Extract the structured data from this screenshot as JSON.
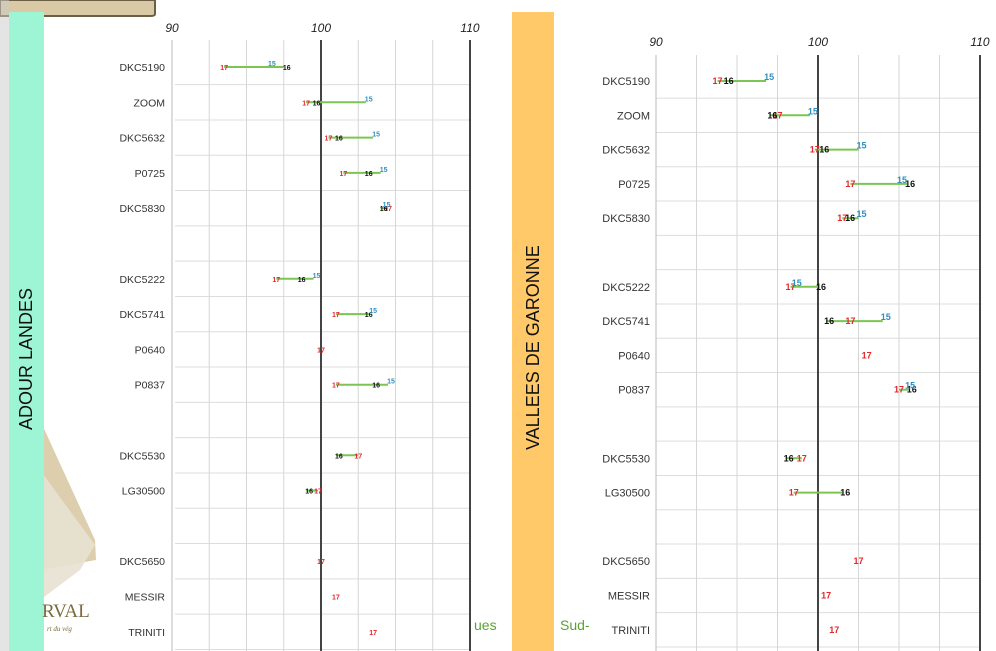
{
  "chart_data": [
    {
      "type": "dot-range",
      "region": "ADOUR LANDES",
      "x_ticks": [
        "90",
        "100",
        "110"
      ],
      "xlim": [
        90,
        110
      ],
      "grid": true,
      "series": [
        {
          "name": "17",
          "color": "#e5262b"
        },
        {
          "name": "16",
          "color": "#111111"
        },
        {
          "name": "15",
          "color": "#2e8fbf"
        }
      ],
      "connector_color": "#7cc552",
      "categories": [
        "DKC5190",
        "ZOOM",
        "DKC5632",
        "P0725",
        "DKC5830",
        "",
        "DKC5222",
        "DKC5741",
        "P0640",
        "P0837",
        "",
        "DKC5530",
        "LG30500",
        "",
        "DKC5650",
        "MESSIR",
        "TRINITI"
      ],
      "values": {
        "17": [
          93.5,
          99.0,
          100.5,
          101.5,
          104.5,
          null,
          97.0,
          101.0,
          100.0,
          101.0,
          null,
          102.5,
          99.8,
          null,
          100.0,
          101.0,
          103.5
        ],
        "16": [
          97.5,
          99.5,
          101.0,
          103.0,
          104.0,
          null,
          98.5,
          103.0,
          null,
          103.5,
          null,
          101.0,
          99.0,
          null,
          null,
          null,
          null
        ],
        "15": [
          96.5,
          103.0,
          103.5,
          104.0,
          104.2,
          null,
          99.5,
          103.3,
          null,
          104.5,
          null,
          null,
          null,
          null,
          null,
          null,
          null
        ]
      }
    },
    {
      "type": "dot-range",
      "region": "VALLEES DE GARONNE",
      "x_ticks": [
        "90",
        "100",
        "110"
      ],
      "xlim": [
        90,
        110
      ],
      "grid": true,
      "series": [
        {
          "name": "17",
          "color": "#e5262b"
        },
        {
          "name": "16",
          "color": "#111111"
        },
        {
          "name": "15",
          "color": "#2e8fbf"
        }
      ],
      "connector_color": "#7cc552",
      "categories": [
        "DKC5190",
        "ZOOM",
        "DKC5632",
        "P0725",
        "DKC5830",
        "",
        "DKC5222",
        "DKC5741",
        "P0640",
        "P0837",
        "",
        "DKC5530",
        "LG30500",
        "",
        "DKC5650",
        "MESSIR",
        "TRINITI"
      ],
      "values": {
        "17": [
          93.8,
          97.5,
          99.8,
          102.0,
          101.5,
          null,
          98.3,
          102.0,
          103.0,
          105.0,
          null,
          99.0,
          98.5,
          null,
          102.5,
          100.5,
          101.0
        ],
        "16": [
          94.3,
          97.0,
          100.2,
          105.5,
          101.8,
          null,
          100.0,
          100.5,
          null,
          105.6,
          null,
          98.0,
          101.5,
          null,
          null,
          null,
          null
        ],
        "15": [
          96.8,
          99.5,
          102.5,
          105.0,
          102.5,
          null,
          98.5,
          104.0,
          null,
          105.5,
          null,
          null,
          null,
          null,
          null,
          null,
          null
        ]
      }
    }
  ],
  "left_page_fragments": {
    "logo_text": "RVAL",
    "logo_subtext": "rt du vég",
    "footer_text_1": "ues",
    "footer_text_2": "Sud-"
  },
  "colors": {
    "adour_band": "#9ef5d6",
    "garonne_band": "#ffc96a",
    "beige": "#d9caa5",
    "green_text": "#5aa332"
  }
}
